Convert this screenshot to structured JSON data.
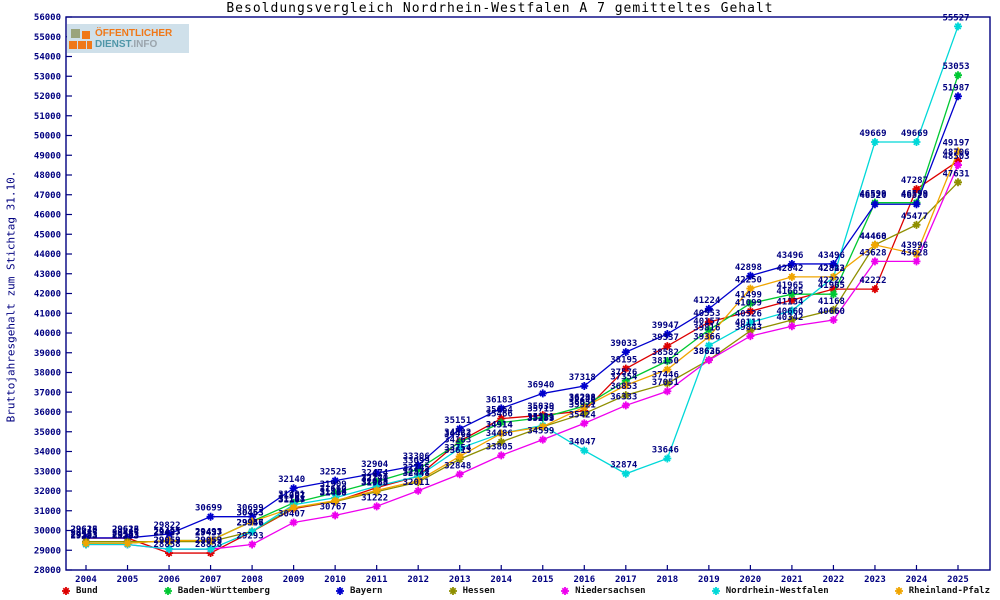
{
  "logo": {
    "line1": "ÖFFENTLICHER",
    "line2_a": "DIENST",
    "line2_b": ".INFO"
  },
  "chart_data": {
    "type": "line",
    "title": "Besoldungsvergleich Nordrhein-Westfalen A 7 gemitteltes Gehalt",
    "ylabel": "Bruttojahresgehalt zum Stichtag 31.10.",
    "xlabel": "",
    "x": [
      2004,
      2005,
      2006,
      2007,
      2008,
      2009,
      2010,
      2011,
      2012,
      2013,
      2014,
      2015,
      2016,
      2017,
      2018,
      2019,
      2020,
      2021,
      2022,
      2023,
      2024,
      2025
    ],
    "ylim": [
      28000,
      56000
    ],
    "ytick_step": 1000,
    "grid": false,
    "legend_position": "bottom",
    "axis_color": "#000080",
    "point_label_color": "#000080",
    "point_labels": true,
    "series": [
      {
        "name": "Bund",
        "color": "#dd0000",
        "values": [
          29616,
          29616,
          28858,
          28858,
          29946,
          31107,
          31460,
          32171,
          32745,
          34522,
          35664,
          35839,
          36055,
          38195,
          39337,
          40553,
          41099,
          41665,
          42222,
          42222,
          47287,
          48706
        ]
      },
      {
        "name": "Baden-Württemberg",
        "color": "#00c832",
        "values": [
          29353,
          29353,
          29493,
          29493,
          30463,
          31401,
          31909,
          32474,
          33099,
          34463,
          35466,
          35719,
          36298,
          37576,
          38582,
          40157,
          41499,
          41965,
          41965,
          46599,
          46599,
          53053
        ]
      },
      {
        "name": "Bayern",
        "color": "#0000cd",
        "values": [
          29623,
          29623,
          29822,
          30699,
          30699,
          32140,
          32525,
          32904,
          33306,
          35151,
          36183,
          36940,
          37318,
          39033,
          39947,
          41224,
          42898,
          43496,
          43496,
          46520,
          46520,
          51987
        ]
      },
      {
        "name": "Hessen",
        "color": "#8f8f00",
        "values": [
          29437,
          29437,
          29437,
          29437,
          29957,
          31148,
          31468,
          31963,
          32448,
          33613,
          34486,
          35253,
          35921,
          36853,
          37446,
          38636,
          40111,
          40660,
          41168,
          44468,
          45477,
          47631
        ]
      },
      {
        "name": "Niedersachsen",
        "color": "#ee00ee",
        "values": [
          29293,
          29293,
          29053,
          29053,
          29293,
          30407,
          30767,
          31222,
          32011,
          32848,
          33805,
          34599,
          35424,
          36333,
          37051,
          38625,
          39843,
          40342,
          40660,
          43628,
          43628,
          48503
        ]
      },
      {
        "name": "Nordrhein-Westfalen",
        "color": "#00d8d8",
        "values": [
          29293,
          29293,
          29059,
          29059,
          29946,
          31307,
          31660,
          32240,
          32745,
          34163,
          34914,
          35321,
          34047,
          32874,
          33646,
          39366,
          40526,
          41134,
          42823,
          49669,
          49669,
          55527
        ]
      },
      {
        "name": "Rheinland-Pfalz",
        "color": "#f0a500",
        "values": [
          29353,
          29353,
          29493,
          29493,
          30453,
          31161,
          31514,
          32028,
          32521,
          33754,
          34914,
          35259,
          36248,
          37354,
          38150,
          39816,
          42250,
          42842,
          42842,
          44460,
          43996,
          49197
        ]
      }
    ]
  }
}
